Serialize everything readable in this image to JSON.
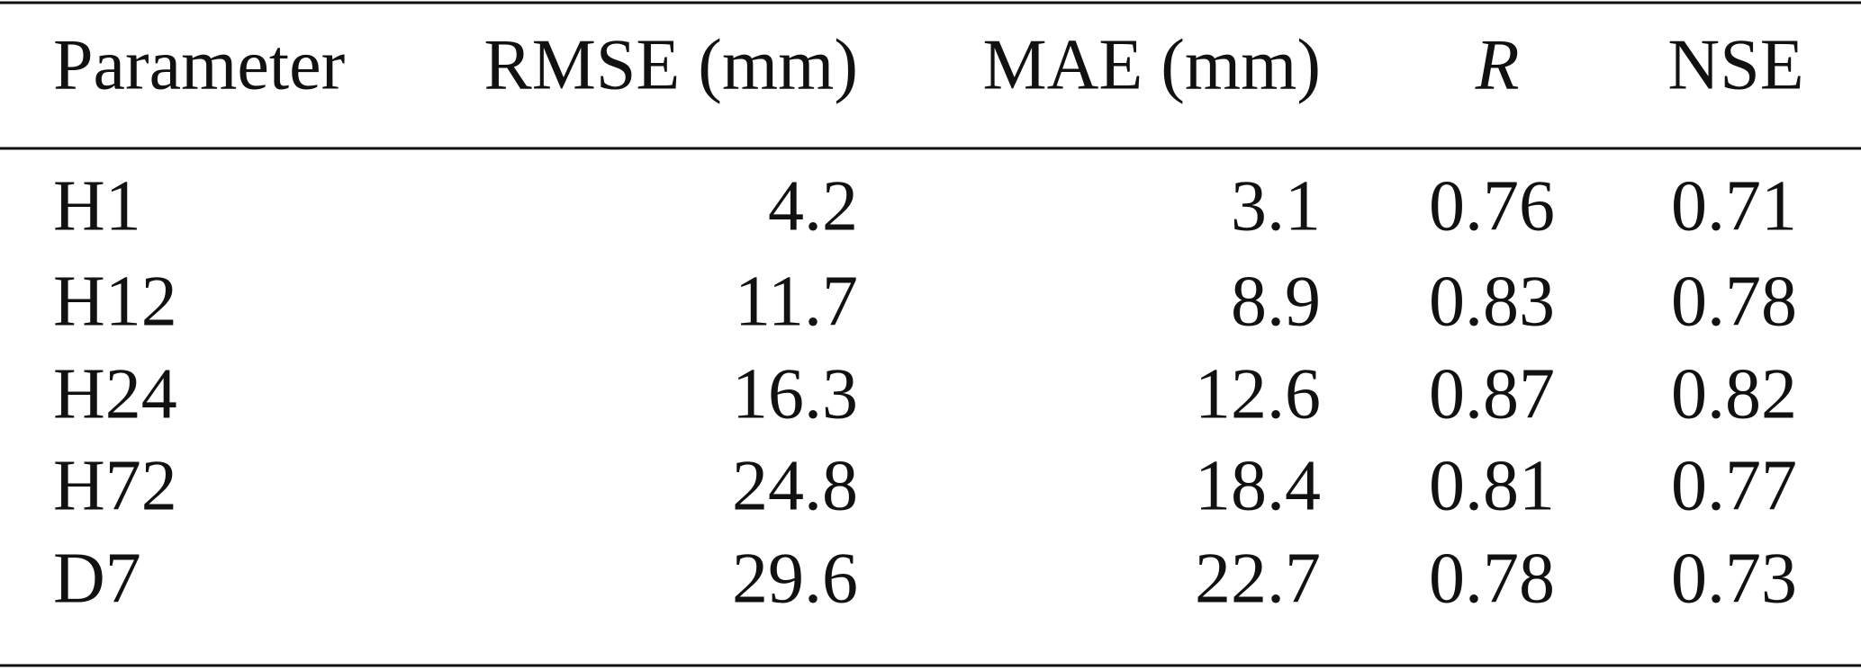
{
  "table": {
    "header": [
      "Parameter",
      "RMSE (mm)",
      "MAE (mm)",
      "R",
      "NSE"
    ],
    "rows": [
      [
        "H1",
        "4.2",
        "3.1",
        "0.76",
        "0.71"
      ],
      [
        "H12",
        "11.7",
        "8.9",
        "0.83",
        "0.78"
      ],
      [
        "H24",
        "16.3",
        "12.6",
        "0.87",
        "0.82"
      ],
      [
        "H72",
        "24.8",
        "18.4",
        "0.81",
        "0.77"
      ],
      [
        "D7",
        "29.6",
        "22.7",
        "0.78",
        "0.73"
      ]
    ]
  }
}
